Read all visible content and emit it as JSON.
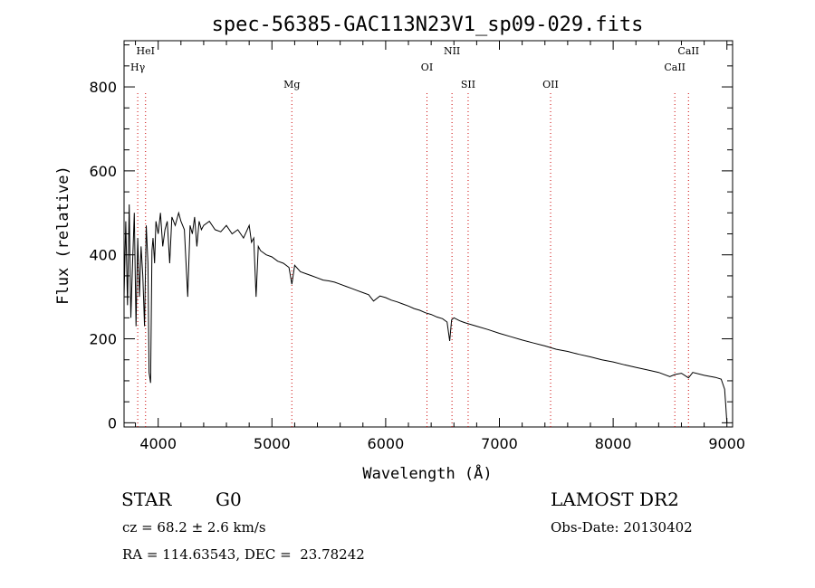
{
  "chart_data": {
    "type": "line",
    "title": "spec-56385-GAC113N23V1_sp09-029.fits",
    "xlabel": "Wavelength (Å)",
    "ylabel": "Flux (relative)",
    "xlim": [
      3700,
      9050
    ],
    "ylim": [
      -10,
      910
    ],
    "xticks": [
      4000,
      5000,
      6000,
      7000,
      8000,
      9000
    ],
    "yticks": [
      0,
      200,
      400,
      600,
      800
    ],
    "grid": false,
    "line_color": "#000000",
    "marker_color": "#cc0000",
    "spectrum": {
      "x": [
        3700,
        3715,
        3730,
        3745,
        3760,
        3775,
        3790,
        3805,
        3820,
        3835,
        3850,
        3865,
        3880,
        3895,
        3910,
        3920,
        3933,
        3945,
        3955,
        3968,
        3980,
        4000,
        4020,
        4040,
        4060,
        4080,
        4101,
        4120,
        4150,
        4180,
        4200,
        4230,
        4260,
        4280,
        4300,
        4320,
        4340,
        4360,
        4380,
        4400,
        4450,
        4500,
        4550,
        4600,
        4650,
        4700,
        4750,
        4800,
        4820,
        4840,
        4861,
        4880,
        4900,
        4950,
        5000,
        5050,
        5100,
        5150,
        5175,
        5200,
        5250,
        5300,
        5350,
        5400,
        5450,
        5500,
        5550,
        5600,
        5650,
        5700,
        5750,
        5800,
        5850,
        5893,
        5950,
        6000,
        6050,
        6100,
        6150,
        6200,
        6250,
        6300,
        6350,
        6400,
        6450,
        6500,
        6540,
        6563,
        6580,
        6600,
        6650,
        6700,
        6800,
        6900,
        7000,
        7100,
        7200,
        7300,
        7400,
        7500,
        7600,
        7700,
        7800,
        7900,
        8000,
        8100,
        8200,
        8300,
        8400,
        8498,
        8542,
        8600,
        8662,
        8700,
        8800,
        8900,
        8950,
        8980,
        8990,
        9000
      ],
      "y": [
        300,
        480,
        280,
        520,
        250,
        380,
        500,
        230,
        440,
        300,
        420,
        350,
        230,
        470,
        380,
        120,
        95,
        410,
        440,
        380,
        480,
        450,
        500,
        420,
        460,
        480,
        380,
        490,
        470,
        500,
        480,
        460,
        300,
        470,
        450,
        490,
        420,
        480,
        460,
        470,
        480,
        460,
        455,
        470,
        450,
        460,
        440,
        470,
        430,
        440,
        300,
        420,
        410,
        400,
        395,
        385,
        380,
        370,
        330,
        375,
        360,
        355,
        350,
        345,
        340,
        338,
        335,
        330,
        325,
        320,
        315,
        310,
        305,
        290,
        302,
        298,
        292,
        288,
        283,
        278,
        272,
        268,
        262,
        258,
        252,
        248,
        240,
        195,
        245,
        250,
        243,
        238,
        230,
        222,
        213,
        205,
        197,
        190,
        183,
        175,
        170,
        163,
        157,
        150,
        145,
        138,
        132,
        126,
        120,
        110,
        115,
        118,
        107,
        120,
        113,
        108,
        104,
        80,
        40,
        0
      ]
    },
    "lines": [
      {
        "label": "HeI",
        "wavelength": 3889,
        "row": 1
      },
      {
        "label": "Hγ",
        "wavelength": 3820,
        "row": 2
      },
      {
        "label": "Mg",
        "wavelength": 5175,
        "row": 3
      },
      {
        "label": "OI",
        "wavelength": 6363,
        "row": 2
      },
      {
        "label": "NII",
        "wavelength": 6583,
        "row": 1
      },
      {
        "label": "SII",
        "wavelength": 6725,
        "row": 3
      },
      {
        "label": "OII",
        "wavelength": 7450,
        "row": 3
      },
      {
        "label": "CaII",
        "wavelength": 8542,
        "row": 2
      },
      {
        "label": "CaII",
        "wavelength": 8662,
        "row": 1
      }
    ]
  },
  "info": {
    "object_type": "STAR",
    "subclass": "G0",
    "survey": "LAMOST DR2",
    "cz": "cz = 68.2 ± 2.6 km/s",
    "obs_date": "Obs-Date: 20130402",
    "coords": "RA = 114.63543, DEC =  23.78242"
  }
}
